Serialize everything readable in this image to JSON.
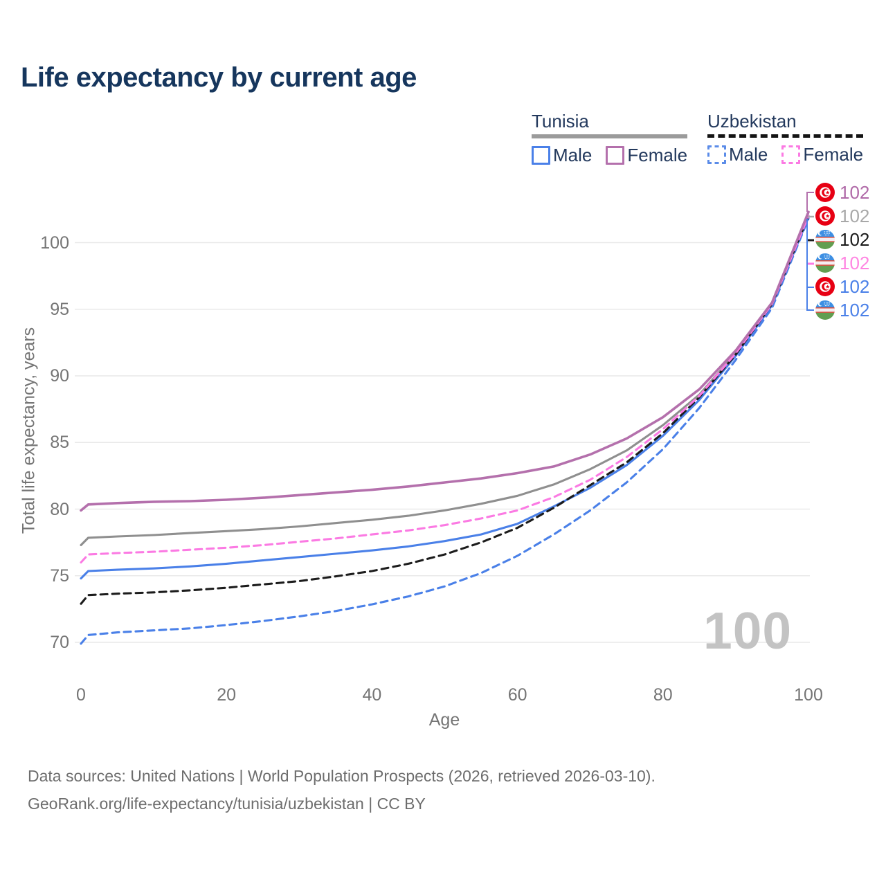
{
  "title": "Life expectancy by current age",
  "watermark": "100",
  "legend": {
    "groups": [
      {
        "name": "Tunisia",
        "underline_style": "solid",
        "underline_color": "#9b9b9b",
        "items": [
          {
            "label": "Male",
            "color": "#4a80e8",
            "dashed": false
          },
          {
            "label": "Female",
            "color": "#b470ac",
            "dashed": false
          }
        ]
      },
      {
        "name": "Uzbekistan",
        "underline_style": "dashed",
        "underline_color": "#141414",
        "items": [
          {
            "label": "Male",
            "color": "#5b8ce8",
            "dashed": true
          },
          {
            "label": "Female",
            "color": "#fb7ae3",
            "dashed": true
          }
        ]
      }
    ]
  },
  "chart_data": {
    "type": "line",
    "title": "Life expectancy by current age",
    "xlabel": "Age",
    "ylabel": "Total life expectancy, years",
    "xlim": [
      0,
      100
    ],
    "ylim": [
      69,
      103
    ],
    "x_ticks": [
      0,
      20,
      40,
      60,
      80,
      100
    ],
    "y_ticks": [
      70,
      75,
      80,
      85,
      90,
      95,
      100
    ],
    "grid": "horizontal",
    "grid_color": "#e9e9e9",
    "x": [
      0,
      1,
      5,
      10,
      15,
      20,
      25,
      30,
      35,
      40,
      45,
      50,
      55,
      60,
      65,
      70,
      75,
      80,
      85,
      90,
      95,
      100
    ],
    "series": [
      {
        "key": "tunisia-all",
        "name": "Tunisia",
        "country": "Tunisia",
        "sex": "Both",
        "color": "#8f8f8f",
        "dashed": false,
        "values": [
          77.3,
          77.85,
          77.95,
          78.05,
          78.2,
          78.35,
          78.5,
          78.7,
          78.95,
          79.2,
          79.5,
          79.9,
          80.4,
          81.0,
          81.85,
          83.0,
          84.4,
          86.3,
          88.6,
          91.7,
          95.4,
          102.0
        ]
      },
      {
        "key": "uzbekistan-male",
        "name": "Uzbekistan Male",
        "country": "Uzbekistan",
        "sex": "Male",
        "color": "#4a80e8",
        "dashed": true,
        "values": [
          69.9,
          70.55,
          70.75,
          70.9,
          71.05,
          71.3,
          71.6,
          71.95,
          72.35,
          72.85,
          73.45,
          74.2,
          75.2,
          76.5,
          78.1,
          79.9,
          82.0,
          84.5,
          87.6,
          91.2,
          95.1,
          101.8
        ]
      },
      {
        "key": "tunisia-male",
        "name": "Tunisia Male",
        "country": "Tunisia",
        "sex": "Male",
        "color": "#4a80e8",
        "dashed": false,
        "values": [
          74.8,
          75.35,
          75.45,
          75.55,
          75.7,
          75.9,
          76.15,
          76.4,
          76.65,
          76.9,
          77.2,
          77.6,
          78.1,
          78.9,
          80.2,
          81.6,
          83.3,
          85.5,
          88.2,
          91.5,
          95.3,
          101.9
        ]
      },
      {
        "key": "uzbekistan-all",
        "name": "Uzbekistan",
        "country": "Uzbekistan",
        "sex": "Both",
        "color": "#1c1c1c",
        "dashed": true,
        "values": [
          72.9,
          73.55,
          73.65,
          73.75,
          73.9,
          74.1,
          74.35,
          74.6,
          74.95,
          75.35,
          75.9,
          76.6,
          77.5,
          78.6,
          80.1,
          81.8,
          83.5,
          85.7,
          88.4,
          91.6,
          95.4,
          102.0
        ]
      },
      {
        "key": "uzbekistan-female",
        "name": "Uzbekistan Female",
        "country": "Uzbekistan",
        "sex": "Female",
        "color": "#fb7ae3",
        "dashed": true,
        "values": [
          76.0,
          76.6,
          76.7,
          76.8,
          76.95,
          77.1,
          77.3,
          77.55,
          77.8,
          78.1,
          78.4,
          78.8,
          79.3,
          79.9,
          80.9,
          82.2,
          83.9,
          86.0,
          88.5,
          91.7,
          95.4,
          102.0
        ]
      },
      {
        "key": "tunisia-female",
        "name": "Tunisia Female",
        "country": "Tunisia",
        "sex": "Female",
        "color": "#b470ac",
        "dashed": false,
        "values": [
          79.9,
          80.35,
          80.45,
          80.55,
          80.6,
          80.7,
          80.85,
          81.05,
          81.25,
          81.45,
          81.7,
          82.0,
          82.3,
          82.7,
          83.2,
          84.1,
          85.3,
          86.9,
          89.0,
          91.9,
          95.5,
          102.3
        ]
      }
    ]
  },
  "end_labels": [
    {
      "flag": "tunisia",
      "series": "Tunisia Female",
      "value": "102",
      "color": "#b06aa8"
    },
    {
      "flag": "tunisia",
      "series": "Tunisia",
      "value": "102",
      "color": "#a8a8a8"
    },
    {
      "flag": "uzbekistan",
      "series": "Uzbekistan",
      "value": "102",
      "color": "#1b1b1b"
    },
    {
      "flag": "uzbekistan",
      "series": "Uzbekistan Female",
      "value": "102",
      "color": "#ff85e2"
    },
    {
      "flag": "tunisia",
      "series": "Tunisia Male",
      "value": "102",
      "color": "#4a80e8"
    },
    {
      "flag": "uzbekistan",
      "series": "Uzbekistan Male",
      "value": "102",
      "color": "#4a80e8"
    }
  ],
  "footer": {
    "line1": "Data sources: United Nations | World Population Prospects (2026, retrieved 2026-03-10).",
    "line2": "GeoRank.org/life-expectancy/tunisia/uzbekistan | CC BY"
  }
}
